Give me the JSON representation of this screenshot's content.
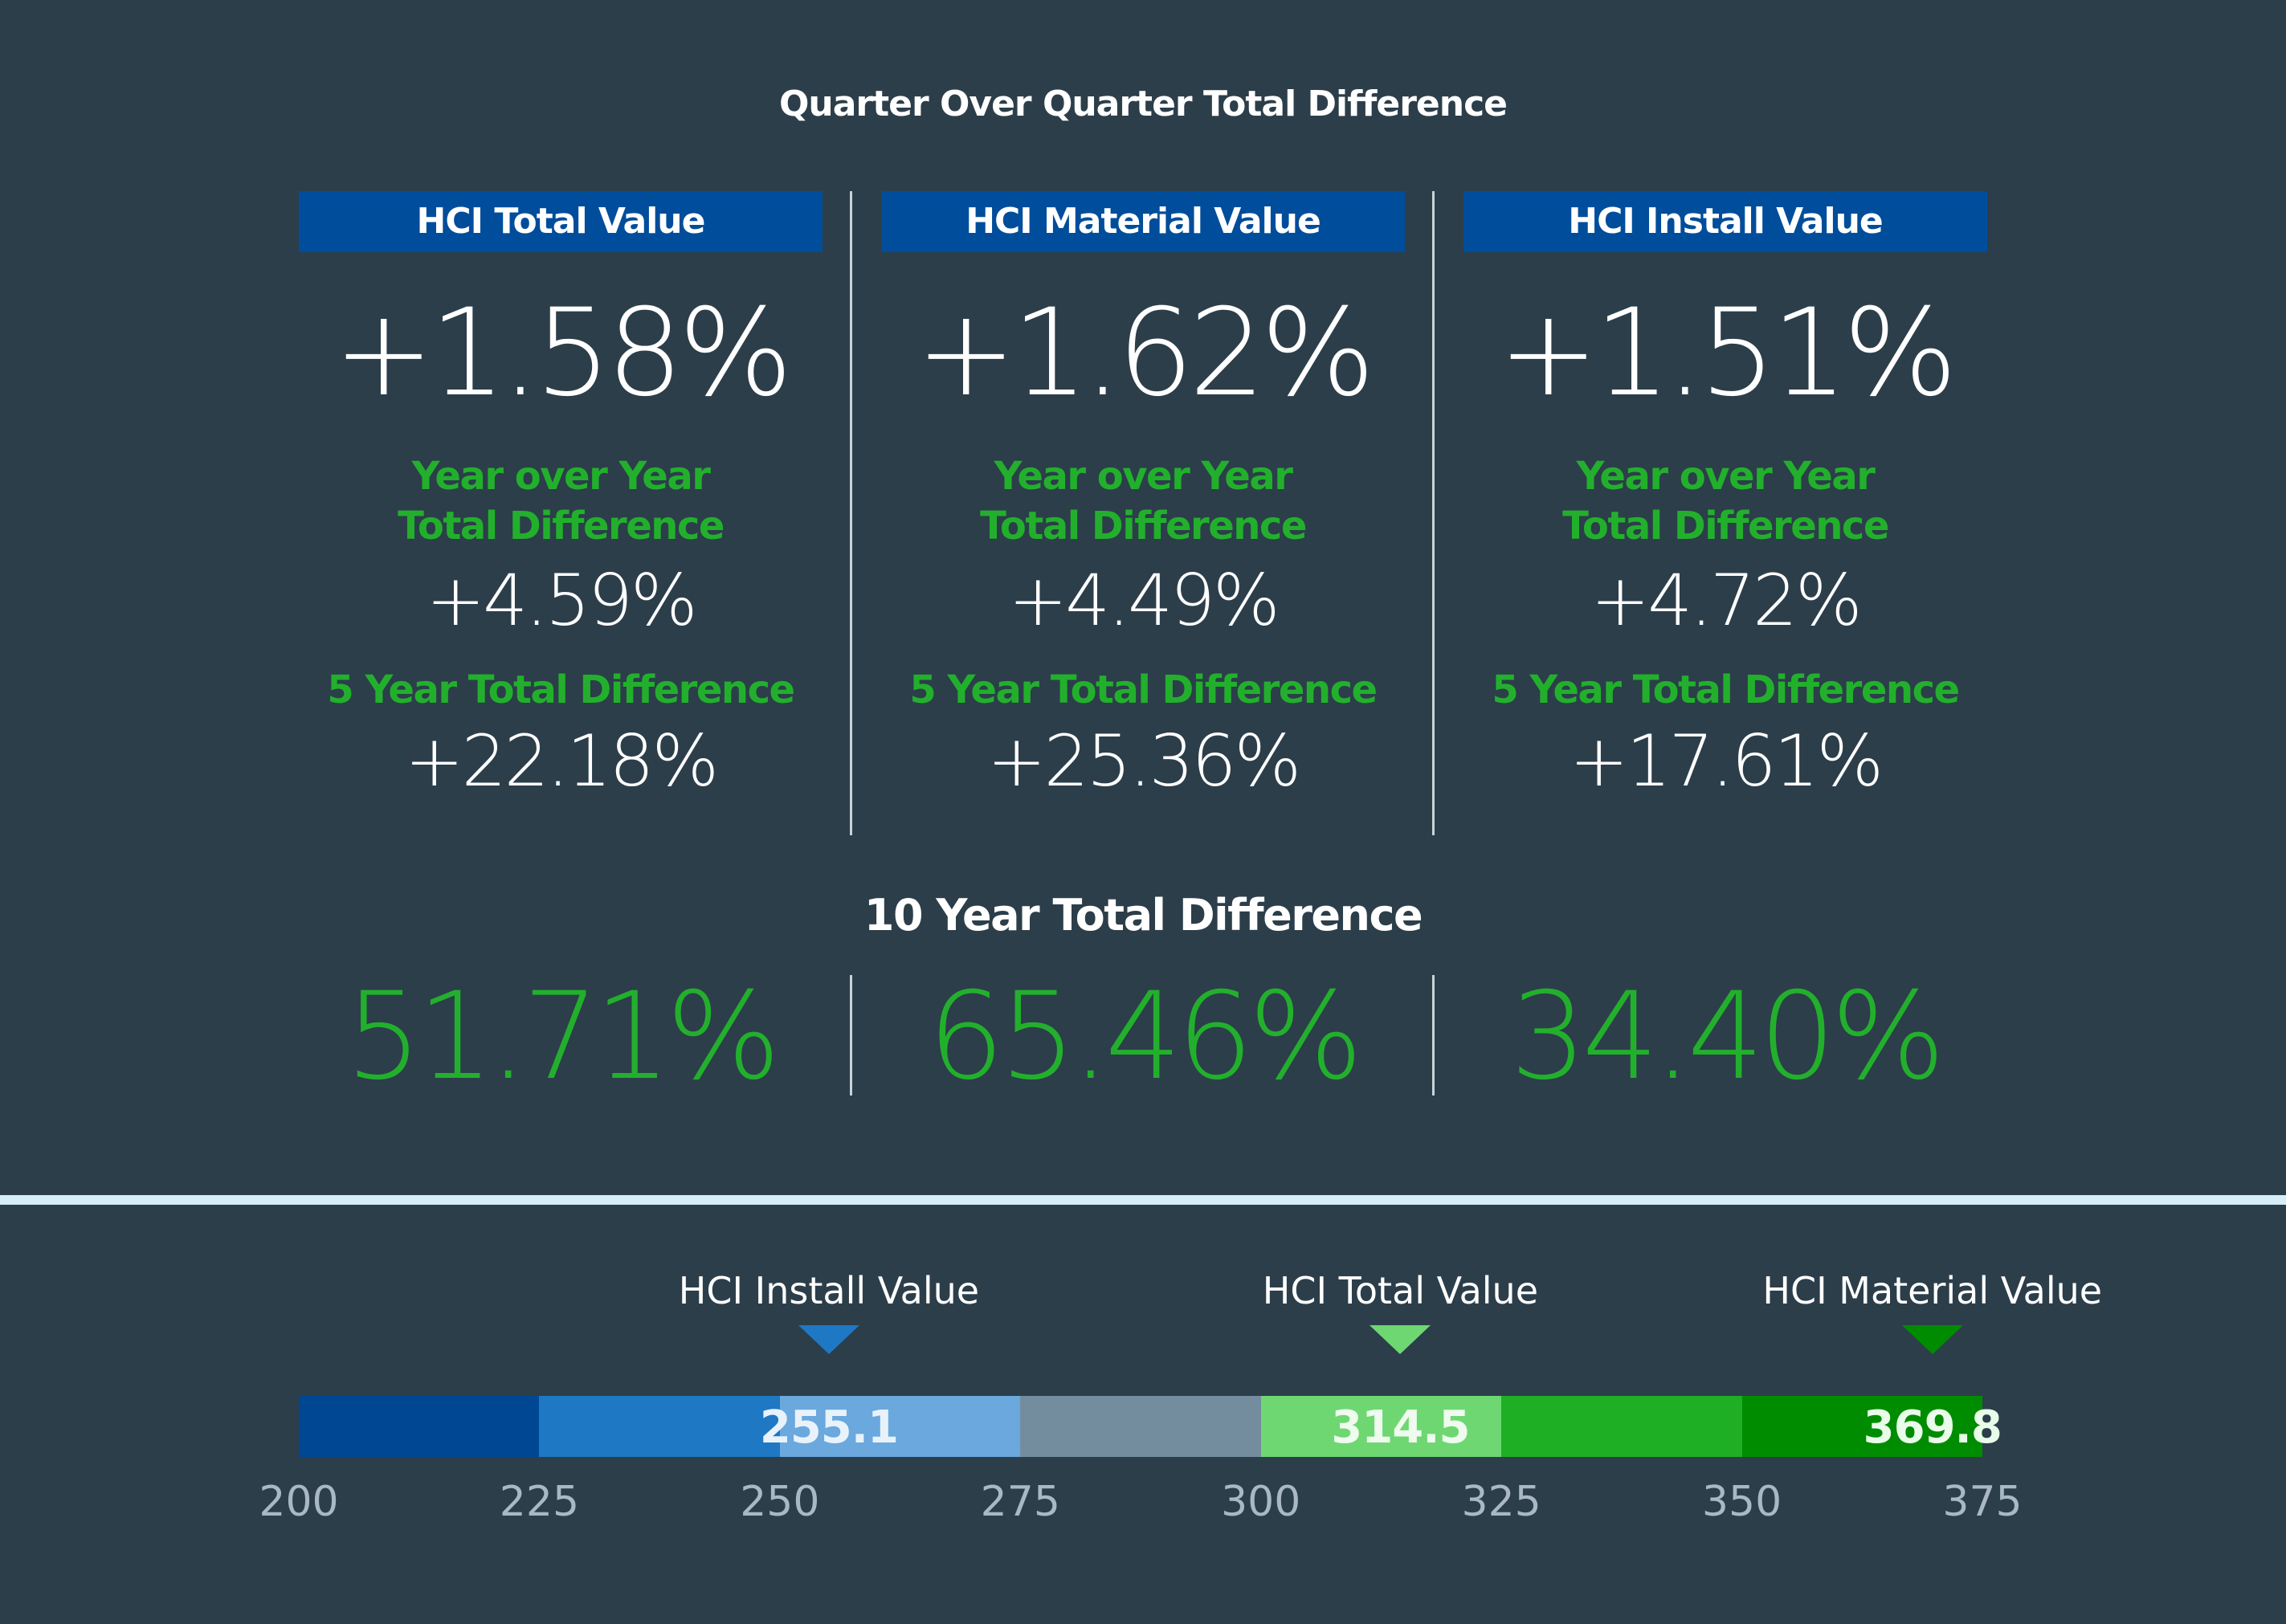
{
  "title": "Quarter Over Quarter Total Difference",
  "columns": [
    {
      "header": "HCI Total Value",
      "qoq": "+1.58%",
      "yoy_label_1": "Year over Year",
      "yoy_label_2": "Total Difference",
      "yoy": "+4.59%",
      "five_year_label": "5 Year Total Difference",
      "five_year": "+22.18%"
    },
    {
      "header": "HCI Material Value",
      "qoq": "+1.62%",
      "yoy_label_1": "Year over Year",
      "yoy_label_2": "Total Difference",
      "yoy": "+4.49%",
      "five_year_label": "5 Year Total Difference",
      "five_year": "+25.36%"
    },
    {
      "header": "HCI Install Value",
      "qoq": "+1.51%",
      "yoy_label_1": "Year over Year",
      "yoy_label_2": "Total Difference",
      "yoy": "+4.72%",
      "five_year_label": "5 Year Total Difference",
      "five_year": "+17.61%"
    }
  ],
  "ten_year": {
    "title": "10 Year Total Difference",
    "values": [
      "51.71%",
      "65.46%",
      "34.40%"
    ]
  },
  "colors": {
    "background": "#2c3e4a",
    "header_blue": "#004d9b",
    "accent_green": "#22b02c",
    "divider": "#c9d3da",
    "rule": "#d6eef6"
  },
  "chart_data": {
    "type": "bar",
    "title": "",
    "xlim": [
      200,
      375
    ],
    "ticks": [
      200,
      225,
      250,
      275,
      300,
      325,
      350,
      375
    ],
    "segments": [
      {
        "from": 200,
        "to": 225,
        "color": "#004793"
      },
      {
        "from": 225,
        "to": 250,
        "color": "#1e78c3"
      },
      {
        "from": 250,
        "to": 275,
        "color": "#6aa8dd"
      },
      {
        "from": 275,
        "to": 300,
        "color": "#748d9e"
      },
      {
        "from": 300,
        "to": 325,
        "color": "#6ed772"
      },
      {
        "from": 325,
        "to": 350,
        "color": "#1eaf24"
      },
      {
        "from": 350,
        "to": 375,
        "color": "#008c00"
      }
    ],
    "markers": [
      {
        "name": "HCI Install Value",
        "value": 255.1,
        "label": "255.1",
        "color": "#1e78c3",
        "value_color": "#e8f2fb"
      },
      {
        "name": "HCI Total Value",
        "value": 314.5,
        "label": "314.5",
        "color": "#6ed772",
        "value_color": "#eefbee"
      },
      {
        "name": "HCI Material Value",
        "value": 369.8,
        "label": "369.8",
        "color": "#008c00",
        "value_color": "#e9fbe9"
      }
    ]
  }
}
